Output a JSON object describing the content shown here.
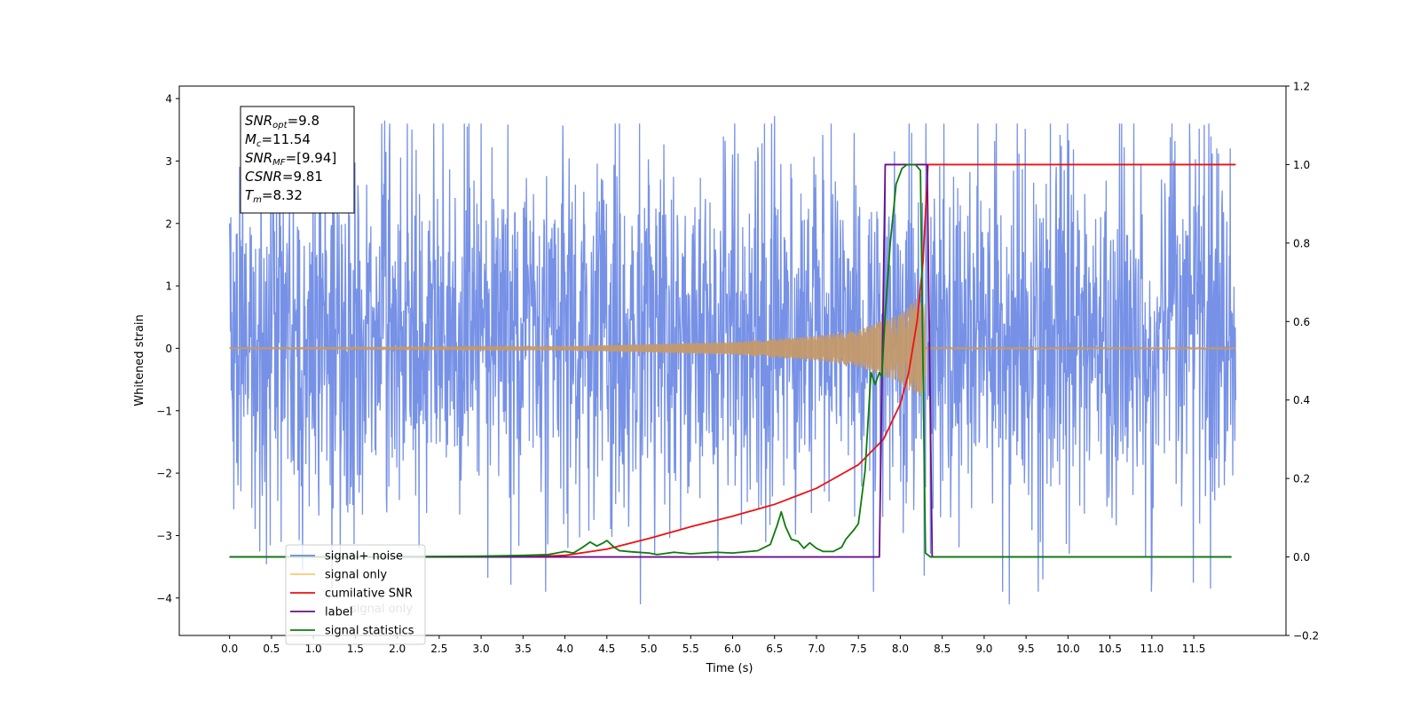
{
  "chart_data": {
    "type": "line",
    "xlabel": "Time (s)",
    "ylabel": "Whitened strain",
    "xlim": [
      -0.6,
      12.6
    ],
    "ylim_left": [
      -4.6,
      4.2
    ],
    "ylim_right": [
      -0.2,
      1.2
    ],
    "x_ticks": [
      "0.0",
      "0.5",
      "1.0",
      "1.5",
      "2.0",
      "2.5",
      "3.0",
      "3.5",
      "4.0",
      "4.5",
      "5.0",
      "5.5",
      "6.0",
      "6.5",
      "7.0",
      "7.5",
      "8.0",
      "8.5",
      "9.0",
      "9.5",
      "10.0",
      "10.5",
      "11.0",
      "11.5"
    ],
    "y_ticks_left": [
      "−4",
      "−3",
      "−2",
      "−1",
      "0",
      "1",
      "2",
      "3",
      "4"
    ],
    "y_ticks_right": [
      "−0.2",
      "0.0",
      "0.2",
      "0.4",
      "0.6",
      "0.8",
      "1.0",
      "1.2"
    ],
    "legend": {
      "placement": "lower-left",
      "entries": [
        {
          "label": "signal+ noise",
          "color": "#6a88e4"
        },
        {
          "label": "signal only",
          "color": "#ffc773"
        },
        {
          "label": "cumilative SNR",
          "color": "#ee1111"
        },
        {
          "label": "label",
          "color": "#6a0f86"
        },
        {
          "label": "signal statistics",
          "color": "#0e7b0e"
        }
      ],
      "hidden_text": "signal only"
    },
    "annotation": {
      "lines": [
        {
          "base": "SNR",
          "sub": "opt",
          "value": "=9.8"
        },
        {
          "base": "M",
          "sub": "c",
          "value": "=11.54"
        },
        {
          "base": "SNR",
          "sub": "MF",
          "value": "=[9.94]"
        },
        {
          "base": "CSNR",
          "sub": "",
          "value": "=9.81"
        },
        {
          "base": "T",
          "sub": "m",
          "value": "=8.32"
        }
      ]
    },
    "series": [
      {
        "name": "signal+ noise",
        "axis": "left",
        "color": "#6a88e4",
        "x_range": [
          0.0,
          12.0
        ],
        "noise_envelope": [
          -2.0,
          2.6
        ],
        "notable_peaks": [
          {
            "x": 1.85,
            "y": 3.65
          },
          {
            "x": 6.5,
            "y": 3.72
          },
          {
            "x": 7.45,
            "y": 3.45
          },
          {
            "x": 4.9,
            "y": -4.1
          },
          {
            "x": 9.3,
            "y": -4.1
          },
          {
            "x": 11.7,
            "y": -3.85
          },
          {
            "x": 9.7,
            "y": -3.7
          },
          {
            "x": 11.0,
            "y": -3.6
          },
          {
            "x": 0.0,
            "y": 2.0
          }
        ]
      },
      {
        "name": "signal only",
        "axis": "left",
        "color": "#c49a6c",
        "x_range": [
          0.0,
          12.0
        ],
        "merger_time": 8.32,
        "amplitude_points": [
          {
            "x": 0.0,
            "y": 0.01
          },
          {
            "x": 4.0,
            "y": 0.03
          },
          {
            "x": 6.0,
            "y": 0.1
          },
          {
            "x": 7.0,
            "y": 0.2
          },
          {
            "x": 7.5,
            "y": 0.3
          },
          {
            "x": 8.0,
            "y": 0.55
          },
          {
            "x": 8.2,
            "y": 0.8
          },
          {
            "x": 8.3,
            "y": 0.7
          }
        ]
      },
      {
        "name": "cumilative SNR",
        "axis": "right",
        "color": "#ee1111",
        "points": [
          {
            "x": 0.0,
            "y": 0.0
          },
          {
            "x": 3.5,
            "y": 0.0
          },
          {
            "x": 4.0,
            "y": 0.004
          },
          {
            "x": 4.5,
            "y": 0.02
          },
          {
            "x": 5.0,
            "y": 0.047
          },
          {
            "x": 5.5,
            "y": 0.077
          },
          {
            "x": 6.0,
            "y": 0.104
          },
          {
            "x": 6.5,
            "y": 0.134
          },
          {
            "x": 7.0,
            "y": 0.175
          },
          {
            "x": 7.5,
            "y": 0.235
          },
          {
            "x": 7.8,
            "y": 0.3
          },
          {
            "x": 8.0,
            "y": 0.39
          },
          {
            "x": 8.1,
            "y": 0.47
          },
          {
            "x": 8.2,
            "y": 0.6
          },
          {
            "x": 8.27,
            "y": 0.75
          },
          {
            "x": 8.32,
            "y": 0.96
          },
          {
            "x": 8.33,
            "y": 1.0
          },
          {
            "x": 12.0,
            "y": 1.0
          }
        ]
      },
      {
        "name": "label",
        "axis": "right",
        "color": "#6a0f86",
        "points": [
          {
            "x": 0.0,
            "y": 0.0
          },
          {
            "x": 7.75,
            "y": 0.0
          },
          {
            "x": 7.82,
            "y": 1.0
          },
          {
            "x": 8.32,
            "y": 1.0
          },
          {
            "x": 8.38,
            "y": 0.0
          },
          {
            "x": 11.95,
            "y": 0.0
          }
        ]
      },
      {
        "name": "signal statistics",
        "axis": "right",
        "color": "#0e7b0e",
        "points": [
          {
            "x": 0.0,
            "y": 0.0
          },
          {
            "x": 1.0,
            "y": 0.0
          },
          {
            "x": 2.0,
            "y": 0.001
          },
          {
            "x": 3.0,
            "y": 0.002
          },
          {
            "x": 3.5,
            "y": 0.004
          },
          {
            "x": 3.8,
            "y": 0.006
          },
          {
            "x": 4.0,
            "y": 0.014
          },
          {
            "x": 4.1,
            "y": 0.01
          },
          {
            "x": 4.2,
            "y": 0.023
          },
          {
            "x": 4.3,
            "y": 0.038
          },
          {
            "x": 4.38,
            "y": 0.028
          },
          {
            "x": 4.45,
            "y": 0.035
          },
          {
            "x": 4.5,
            "y": 0.042
          },
          {
            "x": 4.58,
            "y": 0.026
          },
          {
            "x": 4.65,
            "y": 0.016
          },
          {
            "x": 4.8,
            "y": 0.013
          },
          {
            "x": 5.0,
            "y": 0.01
          },
          {
            "x": 5.1,
            "y": 0.006
          },
          {
            "x": 5.3,
            "y": 0.012
          },
          {
            "x": 5.5,
            "y": 0.008
          },
          {
            "x": 5.8,
            "y": 0.012
          },
          {
            "x": 6.0,
            "y": 0.01
          },
          {
            "x": 6.3,
            "y": 0.016
          },
          {
            "x": 6.45,
            "y": 0.032
          },
          {
            "x": 6.53,
            "y": 0.08
          },
          {
            "x": 6.58,
            "y": 0.115
          },
          {
            "x": 6.63,
            "y": 0.078
          },
          {
            "x": 6.7,
            "y": 0.045
          },
          {
            "x": 6.78,
            "y": 0.04
          },
          {
            "x": 6.85,
            "y": 0.022
          },
          {
            "x": 6.92,
            "y": 0.036
          },
          {
            "x": 7.0,
            "y": 0.022
          },
          {
            "x": 7.08,
            "y": 0.014
          },
          {
            "x": 7.2,
            "y": 0.014
          },
          {
            "x": 7.3,
            "y": 0.025
          },
          {
            "x": 7.35,
            "y": 0.045
          },
          {
            "x": 7.45,
            "y": 0.07
          },
          {
            "x": 7.5,
            "y": 0.085
          },
          {
            "x": 7.58,
            "y": 0.22
          },
          {
            "x": 7.65,
            "y": 0.47
          },
          {
            "x": 7.7,
            "y": 0.44
          },
          {
            "x": 7.75,
            "y": 0.47
          },
          {
            "x": 7.78,
            "y": 0.46
          },
          {
            "x": 7.82,
            "y": 0.62
          },
          {
            "x": 7.88,
            "y": 0.8
          },
          {
            "x": 7.95,
            "y": 0.95
          },
          {
            "x": 8.02,
            "y": 0.99
          },
          {
            "x": 8.08,
            "y": 1.0
          },
          {
            "x": 8.18,
            "y": 1.0
          },
          {
            "x": 8.24,
            "y": 0.985
          },
          {
            "x": 8.3,
            "y": 0.01
          },
          {
            "x": 8.36,
            "y": 0.0
          },
          {
            "x": 11.95,
            "y": 0.0
          }
        ]
      }
    ]
  }
}
